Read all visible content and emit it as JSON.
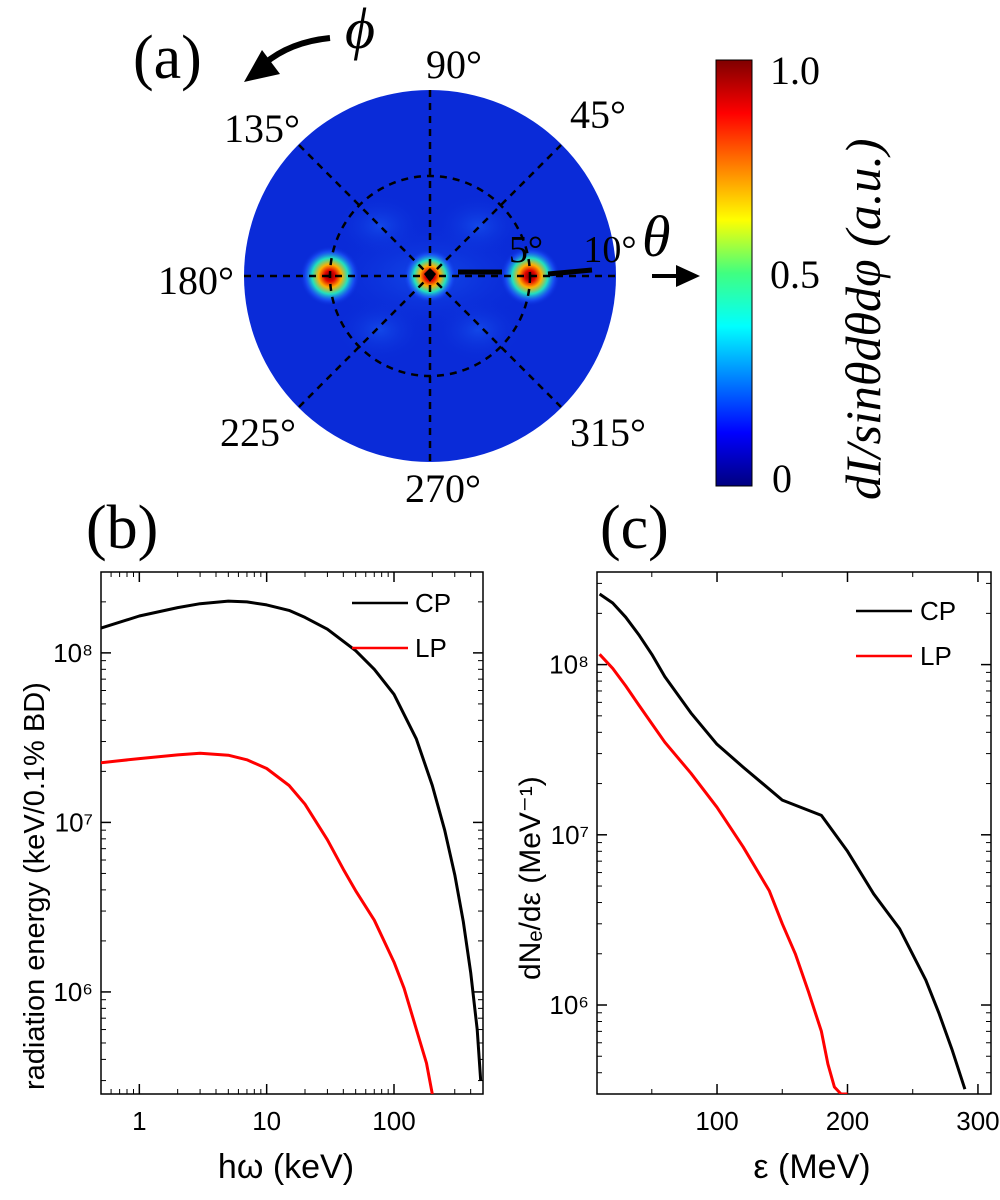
{
  "chart_data": [
    {
      "panel": "(a)",
      "type": "heatmap",
      "projection": "polar",
      "title": "",
      "angle_symbol": "ϕ",
      "radial_symbol": "θ",
      "azimuth_ticks": [
        "90°",
        "45°",
        "135°",
        "180°",
        "225°",
        "270°",
        "315°"
      ],
      "radial_ticks": [
        "5°",
        "10°"
      ],
      "radial_tick_values_deg": [
        5,
        10
      ],
      "theta_max_deg": 12,
      "hotspots": [
        {
          "phi_deg": 180,
          "theta_deg": 5,
          "intensity": 1.0
        },
        {
          "phi_deg": 0,
          "theta_deg": 0,
          "intensity": 0.9
        },
        {
          "phi_deg": 0,
          "theta_deg": 5,
          "intensity": 1.0
        }
      ],
      "colorbar": {
        "label": "dI/sinθdθdφ (a.u.)",
        "ticks": [
          "0",
          "0.5",
          "1.0"
        ],
        "range": [
          0,
          1
        ],
        "colormap": "jet"
      }
    },
    {
      "panel": "(b)",
      "type": "line",
      "xscale": "log",
      "yscale": "log",
      "xlabel": "hω (keV)",
      "ylabel": "radiation energy (keV/0.1% BD)",
      "xlim": [
        0.5,
        500
      ],
      "ylim": [
        250000,
        300000000
      ],
      "xticks": [
        "1",
        "10",
        "100"
      ],
      "xtick_values": [
        1,
        10,
        100
      ],
      "ytick_values": [
        1000000,
        10000000,
        100000000
      ],
      "legend_position": "top-right",
      "series": [
        {
          "name": "CP",
          "color": "#000000",
          "x": [
            0.5,
            1,
            2,
            3,
            5,
            7,
            10,
            15,
            20,
            30,
            50,
            70,
            100,
            150,
            200,
            250,
            300,
            350,
            400,
            450,
            480
          ],
          "y": [
            140000000,
            165000000,
            185000000,
            195000000,
            202000000,
            200000000,
            192000000,
            178000000,
            162000000,
            138000000,
            103000000,
            80000000,
            57000000,
            31000000,
            16500000,
            9000000,
            4900000,
            2600000,
            1300000,
            600000,
            300000
          ]
        },
        {
          "name": "LP",
          "color": "#ff0000",
          "x": [
            0.5,
            1,
            2,
            3,
            5,
            7,
            10,
            15,
            20,
            30,
            40,
            50,
            70,
            100,
            120,
            150,
            180,
            200
          ],
          "y": [
            22500000,
            23800000,
            25000000,
            25600000,
            24900000,
            23400000,
            20800000,
            16500000,
            12800000,
            7900000,
            5300000,
            3950000,
            2650000,
            1500000,
            1050000,
            600000,
            380000,
            250000
          ]
        }
      ]
    },
    {
      "panel": "(c)",
      "type": "line",
      "xscale": "linear",
      "yscale": "log",
      "xlabel": "ε (MeV)",
      "ylabel": "dNₑ/dε (MeV⁻¹)",
      "xlim": [
        8,
        310
      ],
      "ylim": [
        300000,
        350000000
      ],
      "xtick_values": [
        100,
        200,
        300
      ],
      "ytick_values": [
        1000000,
        10000000,
        100000000
      ],
      "legend_position": "top-right",
      "series": [
        {
          "name": "CP",
          "color": "#000000",
          "x": [
            10,
            20,
            30,
            40,
            50,
            60,
            80,
            100,
            120,
            150,
            180,
            200,
            220,
            240,
            260,
            270,
            280,
            290
          ],
          "y": [
            260000000,
            230000000,
            190000000,
            150000000,
            115000000,
            85000000,
            52000000,
            34000000,
            25000000,
            16000000,
            13000000,
            8000000,
            4500000,
            2800000,
            1400000,
            900000,
            550000,
            320000
          ]
        },
        {
          "name": "LP",
          "color": "#ff0000",
          "x": [
            10,
            20,
            30,
            40,
            50,
            60,
            80,
            100,
            120,
            140,
            150,
            160,
            170,
            180,
            185,
            190,
            195,
            200
          ],
          "y": [
            115000000,
            95000000,
            75000000,
            58000000,
            45000000,
            35000000,
            23000000,
            14500000,
            8500000,
            4700000,
            3000000,
            2000000,
            1200000,
            700000,
            450000,
            330000,
            300000,
            300000
          ]
        }
      ]
    }
  ]
}
